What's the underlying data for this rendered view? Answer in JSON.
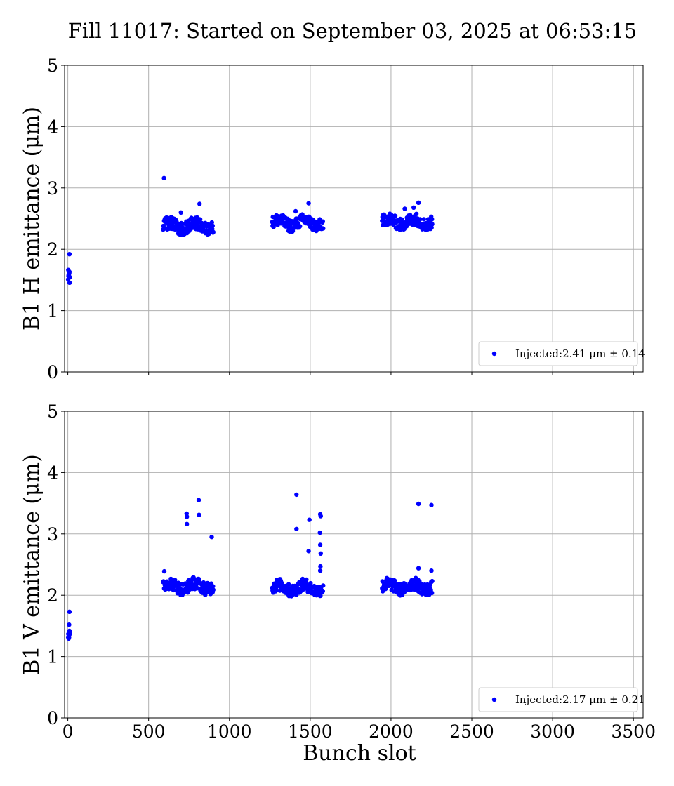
{
  "title": "Fill 11017: Started on September 03, 2025 at 06:53:15",
  "colors": {
    "marker": "#0000ff",
    "grid": "#b0b0b0",
    "axes": "#000000"
  },
  "chart_data": [
    {
      "type": "scatter",
      "ylabel": "B1 H emittance (μm)",
      "xlabel": "",
      "xlim": [
        -20,
        3560
      ],
      "ylim": [
        0,
        5
      ],
      "xticks": [
        0,
        500,
        1000,
        1500,
        2000,
        2500,
        3000,
        3500
      ],
      "yticks": [
        0,
        1,
        2,
        3,
        4,
        5
      ],
      "show_xtick_labels": false,
      "grid": true,
      "legend": {
        "position": "lower-right",
        "label": "Injected:2.41 μm ± 0.14"
      },
      "series": [
        {
          "name": "Injected:2.41 μm ± 0.14",
          "color": "#0000ff",
          "trains": [
            {
              "x_start": 2,
              "x_end": 12,
              "y_center": 1.55,
              "y_spread": 0.08,
              "count": 10
            },
            {
              "x_start": 590,
              "x_end": 900,
              "y_center": 2.38,
              "y_spread": 0.1,
              "count": 150
            },
            {
              "x_start": 1265,
              "x_end": 1580,
              "y_center": 2.43,
              "y_spread": 0.1,
              "count": 150
            },
            {
              "x_start": 1945,
              "x_end": 2255,
              "y_center": 2.45,
              "y_spread": 0.1,
              "count": 150
            }
          ],
          "outliers": [
            {
              "x": 10,
              "y": 1.92
            },
            {
              "x": 595,
              "y": 3.16
            },
            {
              "x": 815,
              "y": 2.74
            },
            {
              "x": 1490,
              "y": 2.75
            },
            {
              "x": 2170,
              "y": 2.76
            },
            {
              "x": 2140,
              "y": 2.68
            },
            {
              "x": 700,
              "y": 2.6
            },
            {
              "x": 1410,
              "y": 2.62
            },
            {
              "x": 2085,
              "y": 2.66
            }
          ]
        }
      ]
    },
    {
      "type": "scatter",
      "ylabel": "B1 V emittance (μm)",
      "xlabel": "Bunch slot",
      "xlim": [
        -20,
        3560
      ],
      "ylim": [
        0,
        5
      ],
      "xticks": [
        0,
        500,
        1000,
        1500,
        2000,
        2500,
        3000,
        3500
      ],
      "yticks": [
        0,
        1,
        2,
        3,
        4,
        5
      ],
      "show_xtick_labels": true,
      "grid": true,
      "legend": {
        "position": "lower-right",
        "label": "Injected:2.17 μm ± 0.21"
      },
      "series": [
        {
          "name": "Injected:2.17 μm ± 0.21",
          "color": "#0000ff",
          "trains": [
            {
              "x_start": 2,
              "x_end": 12,
              "y_center": 1.36,
              "y_spread": 0.08,
              "count": 10
            },
            {
              "x_start": 590,
              "x_end": 900,
              "y_center": 2.15,
              "y_spread": 0.1,
              "count": 150
            },
            {
              "x_start": 1265,
              "x_end": 1580,
              "y_center": 2.12,
              "y_spread": 0.1,
              "count": 150
            },
            {
              "x_start": 1945,
              "x_end": 2255,
              "y_center": 2.14,
              "y_spread": 0.1,
              "count": 150
            }
          ],
          "outliers": [
            {
              "x": 10,
              "y": 1.73
            },
            {
              "x": 8,
              "y": 1.52
            },
            {
              "x": 597,
              "y": 2.39
            },
            {
              "x": 735,
              "y": 3.33
            },
            {
              "x": 737,
              "y": 3.28
            },
            {
              "x": 737,
              "y": 3.16
            },
            {
              "x": 810,
              "y": 3.55
            },
            {
              "x": 812,
              "y": 3.31
            },
            {
              "x": 890,
              "y": 2.95
            },
            {
              "x": 1415,
              "y": 3.64
            },
            {
              "x": 1415,
              "y": 3.08
            },
            {
              "x": 1495,
              "y": 3.23
            },
            {
              "x": 1490,
              "y": 2.72
            },
            {
              "x": 1562,
              "y": 3.32
            },
            {
              "x": 1565,
              "y": 3.29
            },
            {
              "x": 1560,
              "y": 3.02
            },
            {
              "x": 1562,
              "y": 2.82
            },
            {
              "x": 1565,
              "y": 2.68
            },
            {
              "x": 1563,
              "y": 2.47
            },
            {
              "x": 1562,
              "y": 2.4
            },
            {
              "x": 2170,
              "y": 3.49
            },
            {
              "x": 2250,
              "y": 3.47
            },
            {
              "x": 2170,
              "y": 2.44
            },
            {
              "x": 2250,
              "y": 2.4
            }
          ]
        }
      ]
    }
  ]
}
